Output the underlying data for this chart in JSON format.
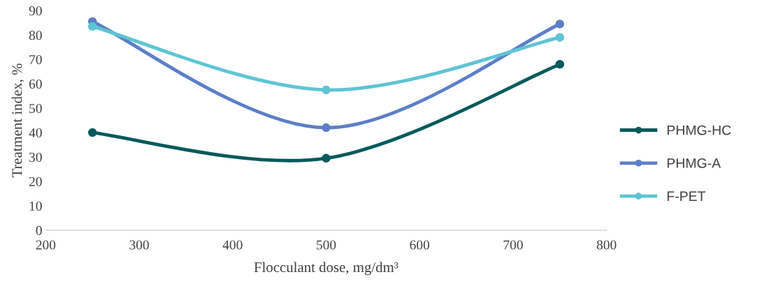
{
  "chart_data": {
    "type": "line",
    "xlabel": "Flocculant dose, mg/dm³",
    "ylabel": "Treatment index, %",
    "x": [
      250,
      500,
      750
    ],
    "series": [
      {
        "name": "PHMG-HC",
        "color": "#045a5c",
        "values": [
          40,
          29.5,
          68
        ]
      },
      {
        "name": "PHMG-A",
        "color": "#5b7fc7",
        "values": [
          85.5,
          42,
          84.5
        ]
      },
      {
        "name": "F-PET",
        "color": "#5ec4d4",
        "values": [
          83.5,
          57.5,
          79
        ]
      }
    ],
    "xlim": [
      200,
      800
    ],
    "xticks": [
      200,
      300,
      400,
      500,
      600,
      700,
      800
    ],
    "ylim": [
      0,
      90
    ],
    "yticks": [
      0,
      10,
      20,
      30,
      40,
      50,
      60,
      70,
      80,
      90
    ],
    "grid": false,
    "legend": "right",
    "marker": "circle",
    "line_style": "solid"
  }
}
